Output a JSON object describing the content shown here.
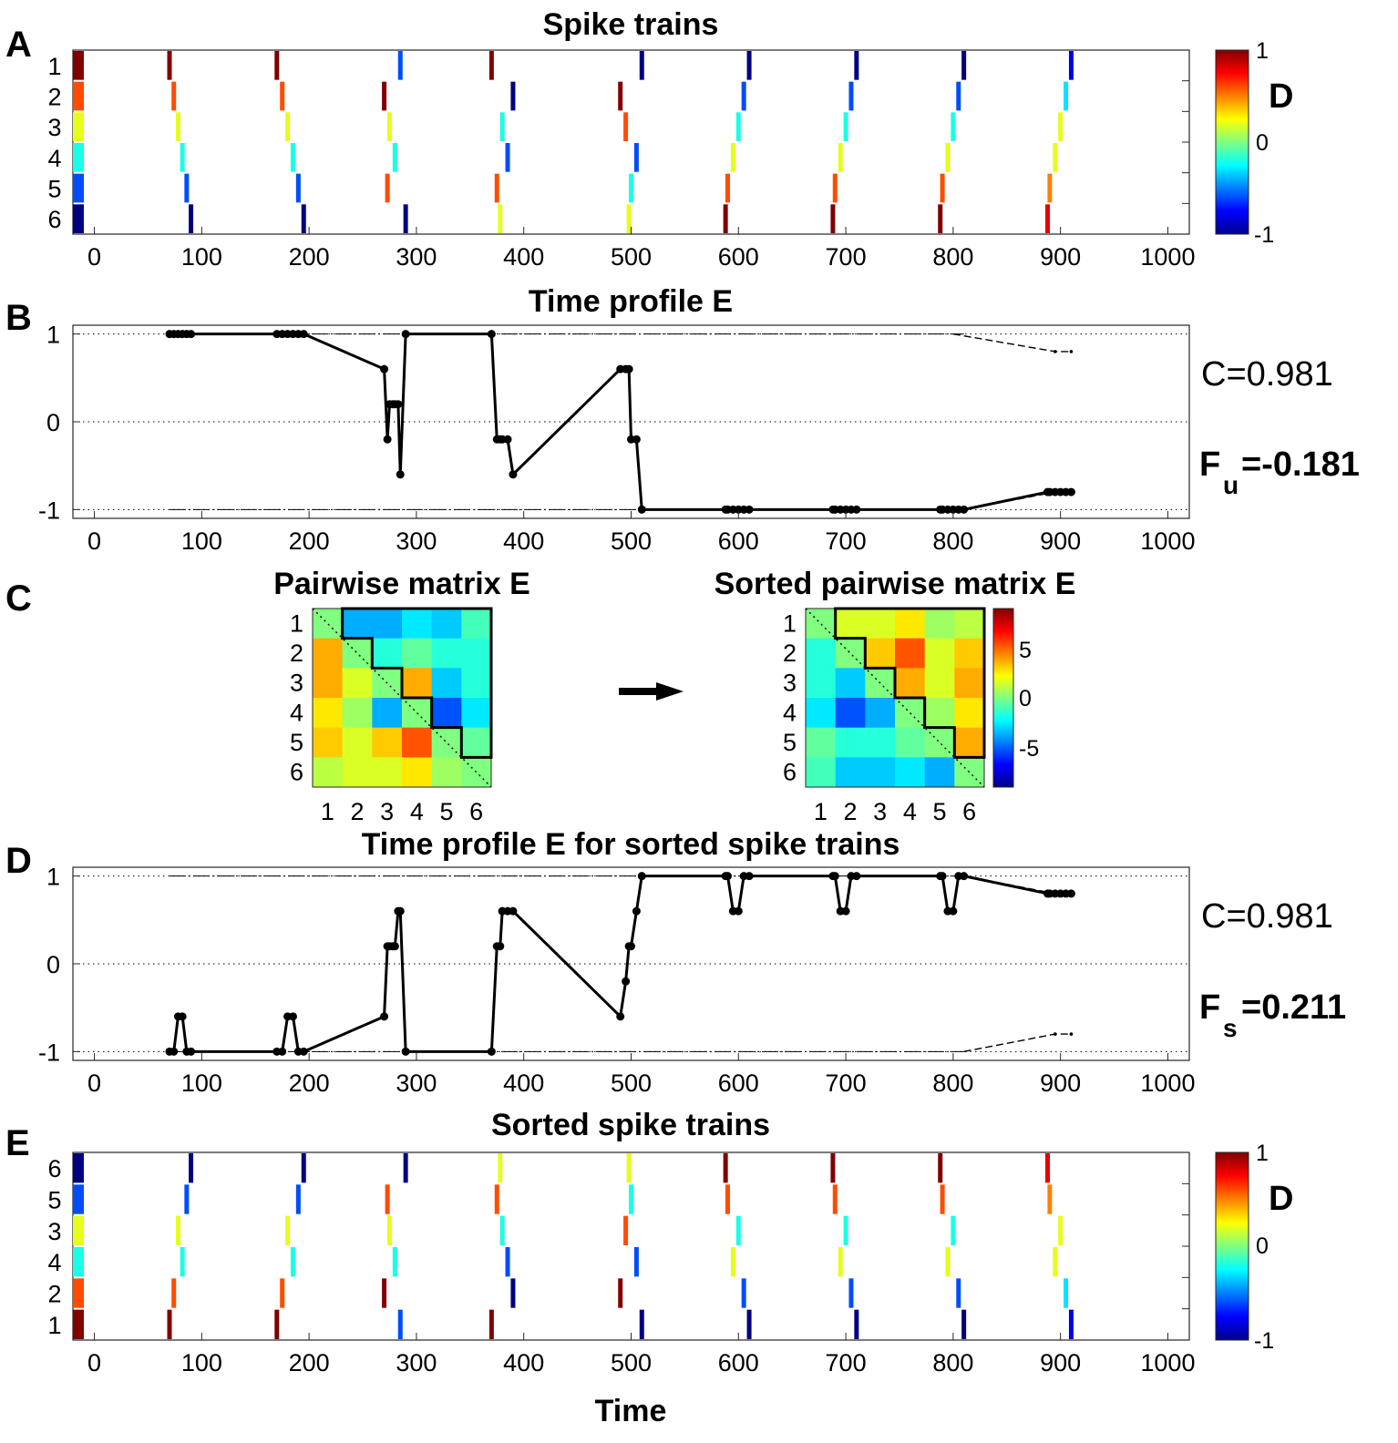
{
  "figure": {
    "panels": [
      "A",
      "B",
      "C",
      "D",
      "E"
    ],
    "titles": {
      "A": "Spike trains",
      "B": "Time profile E",
      "C_left": "Pairwise matrix E",
      "C_right": "Sorted pairwise matrix E",
      "D": "Time profile E for sorted spike trains",
      "E": "Sorted spike trains"
    },
    "x_label": "Time",
    "x_ticks": [
      "0",
      "100",
      "200",
      "300",
      "400",
      "500",
      "600",
      "700",
      "800",
      "900",
      "1000"
    ],
    "colorbar_D": {
      "label": "D",
      "ticks": [
        "1",
        "0",
        "-1"
      ]
    },
    "colorbar_matrix": {
      "ticks": [
        "5",
        "0",
        "-5"
      ]
    },
    "stats": {
      "B_C": "C=0.981",
      "B_F_main": "F",
      "B_F_sub": "u",
      "B_F_value": "=-0.181",
      "D_C": "C=0.981",
      "D_F_main": "F",
      "D_F_sub": "s",
      "D_F_value": "=0.211"
    },
    "matrix_ticks": [
      "1",
      "2",
      "3",
      "4",
      "5",
      "6"
    ],
    "profile_yticks": [
      "1",
      "0",
      "-1"
    ]
  },
  "chart_data": [
    {
      "type": "raster",
      "name": "spike-trains",
      "title": "Spike trains",
      "xlim": [
        -20,
        1020
      ],
      "clim": [
        -1,
        1
      ],
      "row_labels": [
        "1",
        "2",
        "3",
        "4",
        "5",
        "6"
      ],
      "spikes": [
        [
          [
            70,
            1
          ],
          [
            170,
            1
          ],
          [
            285,
            -0.6
          ],
          [
            370,
            1
          ],
          [
            510,
            -1
          ],
          [
            610,
            -1
          ],
          [
            710,
            -1
          ],
          [
            810,
            -1
          ],
          [
            910,
            -0.8
          ]
        ],
        [
          [
            74,
            0.6
          ],
          [
            175,
            0.6
          ],
          [
            270,
            1
          ],
          [
            390,
            -1
          ],
          [
            490,
            1
          ],
          [
            605,
            -0.6
          ],
          [
            705,
            -0.6
          ],
          [
            805,
            -0.6
          ],
          [
            905,
            -0.3
          ]
        ],
        [
          [
            78,
            0.2
          ],
          [
            180,
            0.2
          ],
          [
            275,
            0.2
          ],
          [
            380,
            -0.2
          ],
          [
            495,
            0.6
          ],
          [
            600,
            -0.2
          ],
          [
            700,
            -0.2
          ],
          [
            800,
            -0.2
          ],
          [
            900,
            0.2
          ]
        ],
        [
          [
            82,
            -0.2
          ],
          [
            185,
            -0.2
          ],
          [
            280,
            -0.2
          ],
          [
            385,
            -0.6
          ],
          [
            505,
            -0.6
          ],
          [
            595,
            0.2
          ],
          [
            695,
            0.2
          ],
          [
            795,
            0.2
          ],
          [
            895,
            0.2
          ]
        ],
        [
          [
            86,
            -0.6
          ],
          [
            190,
            -0.6
          ],
          [
            273,
            0.6
          ],
          [
            375,
            0.6
          ],
          [
            500,
            -0.2
          ],
          [
            590,
            0.6
          ],
          [
            690,
            0.6
          ],
          [
            790,
            0.6
          ],
          [
            890,
            0.5
          ]
        ],
        [
          [
            90,
            -1
          ],
          [
            195,
            -1
          ],
          [
            290,
            -1
          ],
          [
            378,
            0.2
          ],
          [
            498,
            0.2
          ],
          [
            588,
            1
          ],
          [
            688,
            1
          ],
          [
            788,
            1
          ],
          [
            888,
            0.8
          ]
        ]
      ]
    },
    {
      "type": "line",
      "name": "time-profile-unsorted",
      "title": "Time profile E",
      "xlim": [
        -20,
        1020
      ],
      "ylim": [
        -1.1,
        1.1
      ],
      "x": [
        70,
        74,
        78,
        82,
        86,
        90,
        170,
        175,
        180,
        185,
        190,
        195,
        270,
        273,
        275,
        278,
        280,
        283,
        285,
        290,
        370,
        375,
        378,
        380,
        385,
        390,
        490,
        495,
        498,
        500,
        505,
        510,
        588,
        590,
        595,
        600,
        605,
        610,
        688,
        690,
        695,
        700,
        705,
        710,
        788,
        790,
        795,
        800,
        805,
        810,
        888,
        890,
        895,
        900,
        905,
        910
      ],
      "y": [
        1,
        1,
        1,
        1,
        1,
        1,
        1,
        1,
        1,
        1,
        1,
        1,
        0.6,
        -0.2,
        0.2,
        0.2,
        0.2,
        0.2,
        -0.6,
        1,
        1,
        -0.2,
        -0.2,
        -0.2,
        -0.2,
        -0.6,
        0.6,
        0.6,
        0.6,
        -0.2,
        -0.2,
        -1,
        -1,
        -1,
        -1,
        -1,
        -1,
        -1,
        -1,
        -1,
        -1,
        -1,
        -1,
        -1,
        -1,
        -1,
        -1,
        -1,
        -1,
        -1,
        -0.8,
        -0.8,
        -0.8,
        -0.8,
        -0.8,
        -0.8
      ],
      "dashed_upper": {
        "x": [
          800,
          895,
          910
        ],
        "y": [
          1,
          0.8,
          0.8
        ]
      },
      "dashed_lower": {
        "x": [
          810,
          895,
          910
        ],
        "y": [
          -1,
          -0.8,
          -0.8
        ]
      },
      "reference_lines": [
        1,
        0,
        -1
      ]
    },
    {
      "type": "heatmap",
      "name": "pairwise-matrix",
      "title": "Pairwise matrix E",
      "labels": [
        "1",
        "2",
        "3",
        "4",
        "5",
        "6"
      ],
      "clim": [
        -8.5,
        8.5
      ],
      "values": [
        [
          0,
          -3.5,
          -3.5,
          -2.5,
          -3,
          -1
        ],
        [
          3.5,
          0,
          -1.5,
          -0.5,
          -1.5,
          -1.5
        ],
        [
          3.5,
          1.5,
          0,
          3.5,
          -3,
          -1.5
        ],
        [
          2.5,
          0.5,
          -3.5,
          0,
          -5,
          -2.5
        ],
        [
          3,
          1.5,
          3,
          5,
          0,
          -0.5
        ],
        [
          1,
          1.5,
          1.5,
          2.5,
          0.5,
          0
        ]
      ]
    },
    {
      "type": "heatmap",
      "name": "sorted-pairwise-matrix",
      "title": "Sorted pairwise matrix E",
      "labels": [
        "1",
        "2",
        "3",
        "4",
        "5",
        "6"
      ],
      "clim": [
        -8.5,
        8.5
      ],
      "values": [
        [
          0,
          1.5,
          1.5,
          2.5,
          0.5,
          1
        ],
        [
          -1.5,
          0,
          3,
          5,
          1.5,
          3
        ],
        [
          -1.5,
          -3,
          0,
          3.5,
          1.5,
          3.5
        ],
        [
          -2.5,
          -5,
          -3.5,
          0,
          0.5,
          2.5
        ],
        [
          -0.5,
          -1.5,
          -1.5,
          -0.5,
          0,
          3.5
        ],
        [
          -1,
          -3,
          -3,
          -2.5,
          -3.5,
          0
        ]
      ]
    },
    {
      "type": "line",
      "name": "time-profile-sorted",
      "title": "Time profile E for sorted spike trains",
      "xlim": [
        -20,
        1020
      ],
      "ylim": [
        -1.1,
        1.1
      ],
      "x": [
        70,
        74,
        78,
        82,
        86,
        90,
        170,
        175,
        180,
        185,
        190,
        195,
        270,
        273,
        275,
        278,
        280,
        283,
        285,
        290,
        370,
        375,
        378,
        380,
        385,
        390,
        490,
        495,
        498,
        500,
        505,
        510,
        588,
        590,
        595,
        600,
        605,
        610,
        688,
        690,
        695,
        700,
        705,
        710,
        788,
        790,
        795,
        800,
        805,
        810,
        888,
        890,
        895,
        900,
        905,
        910
      ],
      "y": [
        -1,
        -1,
        -0.6,
        -0.6,
        -1,
        -1,
        -1,
        -1,
        -0.6,
        -0.6,
        -1,
        -1,
        -0.6,
        0.2,
        0.2,
        0.2,
        0.2,
        0.6,
        0.6,
        -1,
        -1,
        0.2,
        0.2,
        0.6,
        0.6,
        0.6,
        -0.6,
        -0.2,
        0.2,
        0.2,
        0.6,
        1,
        1,
        1,
        0.6,
        0.6,
        1,
        1,
        1,
        1,
        0.6,
        0.6,
        1,
        1,
        1,
        1,
        0.6,
        0.6,
        1,
        1,
        0.8,
        0.8,
        0.8,
        0.8,
        0.8,
        0.8
      ],
      "dashed_upper": {
        "x": [
          810,
          895,
          910
        ],
        "y": [
          1,
          0.8,
          0.8
        ]
      },
      "dashed_lower": {
        "x": [
          810,
          895,
          910
        ],
        "y": [
          -1,
          -0.8,
          -0.8
        ]
      },
      "reference_lines": [
        1,
        0,
        -1
      ]
    },
    {
      "type": "raster",
      "name": "sorted-spike-trains",
      "title": "Sorted spike trains",
      "xlabel": "Time",
      "xlim": [
        -20,
        1020
      ],
      "clim": [
        -1,
        1
      ],
      "row_labels": [
        "6",
        "5",
        "3",
        "4",
        "2",
        "1"
      ],
      "row_source": [
        5,
        4,
        2,
        3,
        1,
        0
      ]
    }
  ]
}
